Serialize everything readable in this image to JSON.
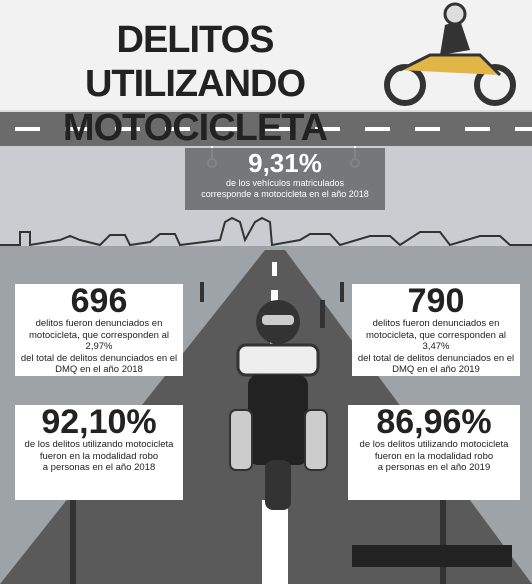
{
  "header": {
    "title_lines": [
      "DELITOS UTILIZANDO",
      "MOTOCICLETA"
    ]
  },
  "banner": {
    "value": "9,31%",
    "text_lines": [
      "de los vehículos matriculados",
      "corresponde a motocicleta en el año 2018"
    ]
  },
  "stats": [
    {
      "value": "696",
      "text_lines": [
        "delitos fueron denunciados en",
        "motocicleta, que corresponden al 2,97%",
        "del total de delitos denunciados en el",
        "DMQ en el año 2018"
      ]
    },
    {
      "value": "790",
      "text_lines": [
        "delitos fueron denunciados en",
        "motocicleta, que corresponden al 3,47%",
        "del total de delitos denunciados en el",
        "DMQ en el año 2019"
      ]
    },
    {
      "value": "92,10%",
      "text_lines": [
        "de los delitos utilizando motocicleta",
        "fueron en la modalidad robo",
        "a personas en el año 2018"
      ]
    },
    {
      "value": "86,96%",
      "text_lines": [
        "de los delitos utilizando motocicleta",
        "fueron en la modalidad robo",
        "a personas en el año 2019"
      ]
    }
  ]
}
